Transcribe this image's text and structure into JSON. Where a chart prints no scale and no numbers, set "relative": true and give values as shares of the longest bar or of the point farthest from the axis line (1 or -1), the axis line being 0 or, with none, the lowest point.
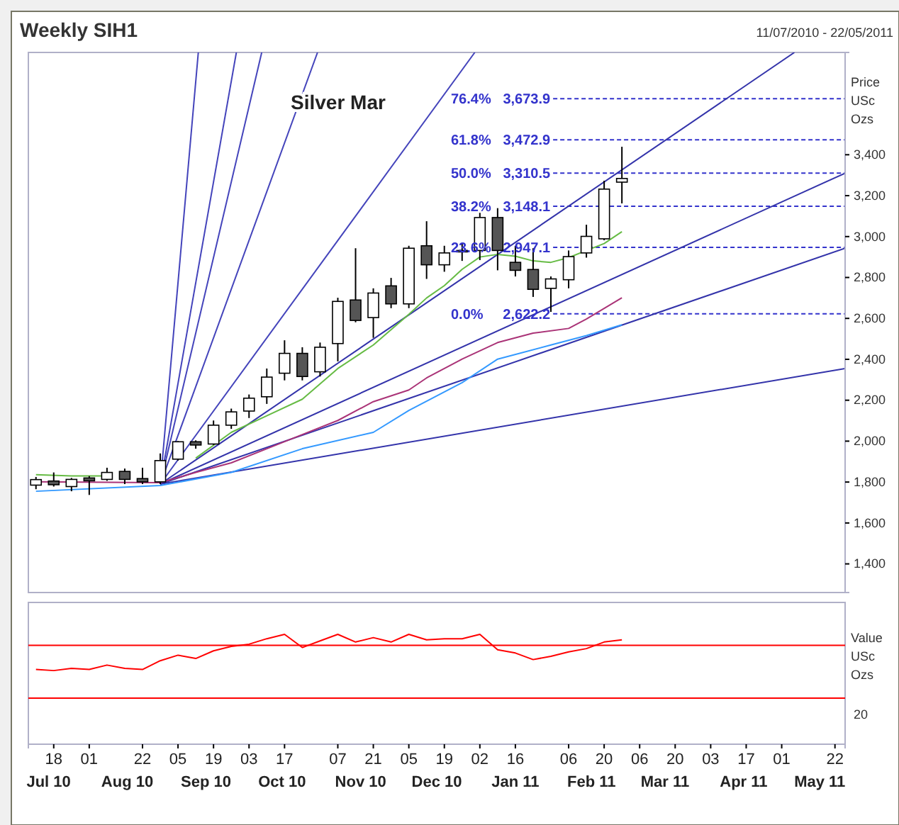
{
  "chart_data": [
    {
      "type": "candlestick",
      "title": "Weekly SIH1",
      "subtitle": "11/07/2010 - 22/05/2011",
      "ylabel": "Price USc Ozs",
      "annotations": [
        "Silver Mar"
      ],
      "x": [
        "2010-07-11",
        "2010-07-18",
        "2010-07-25",
        "2010-08-01",
        "2010-08-08",
        "2010-08-15",
        "2010-08-22",
        "2010-08-29",
        "2010-09-05",
        "2010-09-12",
        "2010-09-19",
        "2010-09-26",
        "2010-10-03",
        "2010-10-10",
        "2010-10-17",
        "2010-10-24",
        "2010-10-31",
        "2010-11-07",
        "2010-11-14",
        "2010-11-21",
        "2010-11-28",
        "2010-12-05",
        "2010-12-12",
        "2010-12-19",
        "2010-12-26",
        "2011-01-02",
        "2011-01-09",
        "2011-01-16",
        "2011-01-23",
        "2011-01-30",
        "2011-02-06",
        "2011-02-13",
        "2011-02-20",
        "2011-02-27"
      ],
      "ohlc": [
        [
          1785,
          1825,
          1765,
          1812
        ],
        [
          1805,
          1847,
          1778,
          1787
        ],
        [
          1778,
          1820,
          1755,
          1813
        ],
        [
          1820,
          1829,
          1737,
          1806
        ],
        [
          1813,
          1870,
          1806,
          1847
        ],
        [
          1852,
          1866,
          1790,
          1813
        ],
        [
          1817,
          1870,
          1790,
          1801
        ],
        [
          1801,
          1940,
          1790,
          1905
        ],
        [
          1912,
          2000,
          1905,
          1997
        ],
        [
          1997,
          2004,
          1963,
          1981
        ],
        [
          1986,
          2101,
          1981,
          2078
        ],
        [
          2078,
          2159,
          2060,
          2143
        ],
        [
          2147,
          2228,
          2113,
          2210
        ],
        [
          2217,
          2355,
          2182,
          2313
        ],
        [
          2332,
          2493,
          2297,
          2429
        ],
        [
          2429,
          2459,
          2297,
          2316
        ],
        [
          2339,
          2482,
          2316,
          2459
        ],
        [
          2477,
          2701,
          2390,
          2683
        ],
        [
          2690,
          2943,
          2581,
          2590
        ],
        [
          2604,
          2747,
          2505,
          2724
        ],
        [
          2759,
          2798,
          2650,
          2671
        ],
        [
          2671,
          2955,
          2650,
          2943
        ],
        [
          2955,
          3075,
          2793,
          2862
        ],
        [
          2862,
          2955,
          2828,
          2920
        ],
        [
          2928,
          2966,
          2881,
          2932
        ],
        [
          2932,
          3116,
          2885,
          3093
        ],
        [
          3093,
          3139,
          2835,
          2932
        ],
        [
          2874,
          2955,
          2805,
          2835
        ],
        [
          2839,
          2943,
          2705,
          2742
        ],
        [
          2747,
          2805,
          2632,
          2793
        ],
        [
          2789,
          2932,
          2747,
          2902
        ],
        [
          2920,
          3058,
          2897,
          3001
        ],
        [
          2989,
          3273,
          2982,
          3232
        ],
        [
          3266,
          3439,
          3162,
          3284
        ]
      ],
      "series": [
        {
          "type": "line",
          "color": "#4444bb",
          "x": [
            "2010-08-29",
            "2010-09-13"
          ],
          "values": [
            1790,
            3900
          ]
        },
        {
          "type": "line",
          "color": "#4444bb",
          "x": [
            "2010-08-29",
            "2010-09-28"
          ],
          "values": [
            1790,
            3900
          ]
        },
        {
          "type": "line",
          "color": "#4444bb",
          "x": [
            "2010-08-29",
            "2010-10-08"
          ],
          "values": [
            1790,
            3900
          ]
        },
        {
          "type": "line",
          "color": "#4444bb",
          "x": [
            "2010-08-29",
            "2010-10-30"
          ],
          "values": [
            1790,
            3900
          ]
        },
        {
          "type": "line",
          "color": "#4444bb",
          "x": [
            "2010-08-29",
            "2010-12-31"
          ],
          "values": [
            1790,
            3900
          ]
        },
        {
          "type": "line",
          "color": "#3333aa",
          "x": [
            "2010-08-29",
            "2011-05-06"
          ],
          "values": [
            1790,
            3900
          ]
        },
        {
          "type": "line",
          "color": "#3333aa",
          "x": [
            "2010-08-29",
            "2011-05-26"
          ],
          "values": [
            1790,
            3310
          ]
        },
        {
          "type": "line",
          "color": "#3333aa",
          "x": [
            "2010-08-29",
            "2011-05-26"
          ],
          "values": [
            1790,
            2943
          ]
        },
        {
          "type": "line",
          "color": "#3333aa",
          "x": [
            "2010-08-29",
            "2011-05-26"
          ],
          "values": [
            1790,
            2355
          ]
        },
        {
          "type": "line",
          "color": "#66bb44",
          "x": [
            "2010-07-11",
            "2010-07-25",
            "2010-08-08",
            "2010-08-29",
            "2010-09-12",
            "2010-09-26",
            "2010-10-10",
            "2010-10-24",
            "2010-11-07",
            "2010-11-21",
            "2010-12-05",
            "2010-12-12",
            "2010-12-19",
            "2010-12-26",
            "2011-01-02",
            "2011-01-09",
            "2011-01-16",
            "2011-01-23",
            "2011-01-30",
            "2011-02-06",
            "2011-02-13",
            "2011-02-20",
            "2011-02-27"
          ],
          "values": [
            1836,
            1830,
            1830,
            null,
            1917,
            2043,
            2124,
            2205,
            2355,
            2470,
            2620,
            2700,
            2760,
            2840,
            2900,
            2913,
            2904,
            2881,
            2874,
            2897,
            2932,
            2966,
            3024
          ]
        },
        {
          "type": "line",
          "color": "#aa3377",
          "x": [
            "2010-07-11",
            "2010-08-29",
            "2010-09-12",
            "2010-09-26",
            "2010-10-10",
            "2010-10-24",
            "2010-11-07",
            "2010-11-21",
            "2010-12-05",
            "2010-12-12",
            "2010-12-26",
            "2011-01-09",
            "2011-01-23",
            "2011-02-06",
            "2011-02-13",
            "2011-02-27"
          ],
          "values": [
            1801,
            1797,
            1847,
            1894,
            1963,
            2032,
            2101,
            2193,
            2250,
            2309,
            2401,
            2482,
            2528,
            2551,
            2597,
            2701
          ]
        },
        {
          "type": "line",
          "color": "#3399ff",
          "x": [
            "2010-07-11",
            "2010-08-29",
            "2010-09-26",
            "2010-10-24",
            "2010-11-21",
            "2010-12-05",
            "2010-12-26",
            "2011-01-09",
            "2011-01-30",
            "2011-02-13",
            "2011-02-27"
          ],
          "values": [
            1755,
            1783,
            1847,
            1963,
            2043,
            2150,
            2286,
            2401,
            2470,
            2516,
            2569
          ]
        }
      ],
      "ref_lines": [
        {
          "axis": "y",
          "value": 3673.9,
          "label": "76.4%   3,673.9",
          "color": "#3333cc",
          "line_style": "dashed"
        },
        {
          "axis": "y",
          "value": 3472.9,
          "label": "61.8%   3,472.9",
          "color": "#3333cc",
          "line_style": "dashed"
        },
        {
          "axis": "y",
          "value": 3310.5,
          "label": "50.0%   3,310.5",
          "color": "#3333cc",
          "line_style": "dashed"
        },
        {
          "axis": "y",
          "value": 3148.1,
          "label": "38.2%   3,148.1",
          "color": "#3333cc",
          "line_style": "dashed"
        },
        {
          "axis": "y",
          "value": 2947.1,
          "label": "23.6%   2,947.1",
          "color": "#3333cc",
          "line_style": "dashed"
        },
        {
          "axis": "y",
          "value": 2622.2,
          "label": "0.0%     2,622.2",
          "color": "#3333cc",
          "line_style": "dashed"
        }
      ],
      "xlim": [
        "2010-07-08",
        "2011-05-26"
      ],
      "ylim": [
        1260,
        3900
      ],
      "yticks": [
        {
          "value": 1400,
          "label": "1,400"
        },
        {
          "value": 1600,
          "label": "1,600"
        },
        {
          "value": 1800,
          "label": "1,800"
        },
        {
          "value": 2000,
          "label": "2,000"
        },
        {
          "value": 2200,
          "label": "2,200"
        },
        {
          "value": 2400,
          "label": "2,400"
        },
        {
          "value": 2600,
          "label": "2,600"
        },
        {
          "value": 2800,
          "label": "2,800"
        },
        {
          "value": 3000,
          "label": "3,000"
        },
        {
          "value": 3200,
          "label": "3,200"
        },
        {
          "value": 3400,
          "label": "3,400"
        }
      ],
      "tick_labels": "y",
      "grid": false
    },
    {
      "type": "line",
      "ylabel": "Value USc Ozs",
      "relative": true,
      "annotations": [
        "20"
      ],
      "x": [
        "2010-07-11",
        "2010-07-18",
        "2010-07-25",
        "2010-08-01",
        "2010-08-08",
        "2010-08-15",
        "2010-08-22",
        "2010-08-29",
        "2010-09-05",
        "2010-09-12",
        "2010-09-19",
        "2010-09-26",
        "2010-10-03",
        "2010-10-10",
        "2010-10-17",
        "2010-10-24",
        "2010-10-31",
        "2010-11-07",
        "2010-11-14",
        "2010-11-21",
        "2010-11-28",
        "2010-12-05",
        "2010-12-12",
        "2010-12-19",
        "2010-12-26",
        "2011-01-02",
        "2011-01-09",
        "2011-01-16",
        "2011-01-23",
        "2011-01-30",
        "2011-02-06",
        "2011-02-13",
        "2011-02-20",
        "2011-02-27"
      ],
      "series": [
        {
          "color": "#ff0000",
          "values": [
            0.68,
            0.67,
            0.69,
            0.68,
            0.72,
            0.69,
            0.68,
            0.76,
            0.81,
            0.78,
            0.85,
            0.89,
            0.91,
            0.96,
            1,
            0.88,
            0.94,
            1,
            0.93,
            0.97,
            0.93,
            1,
            0.95,
            0.96,
            0.96,
            1,
            0.86,
            0.83,
            0.77,
            0.8,
            0.84,
            0.87,
            0.93,
            0.95
          ]
        }
      ],
      "ref_lines": [
        {
          "axis": "y",
          "value": 0.9,
          "color": "#ff0000"
        },
        {
          "axis": "y",
          "value": 0.42,
          "color": "#ff0000"
        }
      ],
      "xlim": [
        "2010-07-08",
        "2011-05-26"
      ],
      "xticks": [
        {
          "value": "2010-07-18",
          "label": "18"
        },
        {
          "value": "2010-08-01",
          "label": "01"
        },
        {
          "value": "2010-08-22",
          "label": "22"
        },
        {
          "value": "2010-09-05",
          "label": "05"
        },
        {
          "value": "2010-09-19",
          "label": "19"
        },
        {
          "value": "2010-10-03",
          "label": "03"
        },
        {
          "value": "2010-10-17",
          "label": "17"
        },
        {
          "value": "2010-11-07",
          "label": "07"
        },
        {
          "value": "2010-11-21",
          "label": "21"
        },
        {
          "value": "2010-12-05",
          "label": "05"
        },
        {
          "value": "2010-12-19",
          "label": "19"
        },
        {
          "value": "2011-01-02",
          "label": "02"
        },
        {
          "value": "2011-01-16",
          "label": "16"
        },
        {
          "value": "2011-02-06",
          "label": "06"
        },
        {
          "value": "2011-02-20",
          "label": "20"
        },
        {
          "value": "2011-03-06",
          "label": "06"
        },
        {
          "value": "2011-03-20",
          "label": "20"
        },
        {
          "value": "2011-04-03",
          "label": "03"
        },
        {
          "value": "2011-04-17",
          "label": "17"
        },
        {
          "value": "2011-05-01",
          "label": "01"
        },
        {
          "value": "2011-05-22",
          "label": "22"
        }
      ],
      "x2lim": [
        "2010-07-08",
        "2011-05-26"
      ],
      "x2ticks": [
        {
          "value": "2010-07-16",
          "label": "Jul 10"
        },
        {
          "value": "2010-08-16",
          "label": "Aug 10"
        },
        {
          "value": "2010-09-16",
          "label": "Sep 10"
        },
        {
          "value": "2010-10-16",
          "label": "Oct 10"
        },
        {
          "value": "2010-11-16",
          "label": "Nov 10"
        },
        {
          "value": "2010-12-16",
          "label": "Dec 10"
        },
        {
          "value": "2011-01-16",
          "label": "Jan 11"
        },
        {
          "value": "2011-02-15",
          "label": "Feb 11"
        },
        {
          "value": "2011-03-16",
          "label": "Mar 11"
        },
        {
          "value": "2011-04-16",
          "label": "Apr 11"
        },
        {
          "value": "2011-05-16",
          "label": "May 11"
        }
      ],
      "grid": false
    }
  ]
}
